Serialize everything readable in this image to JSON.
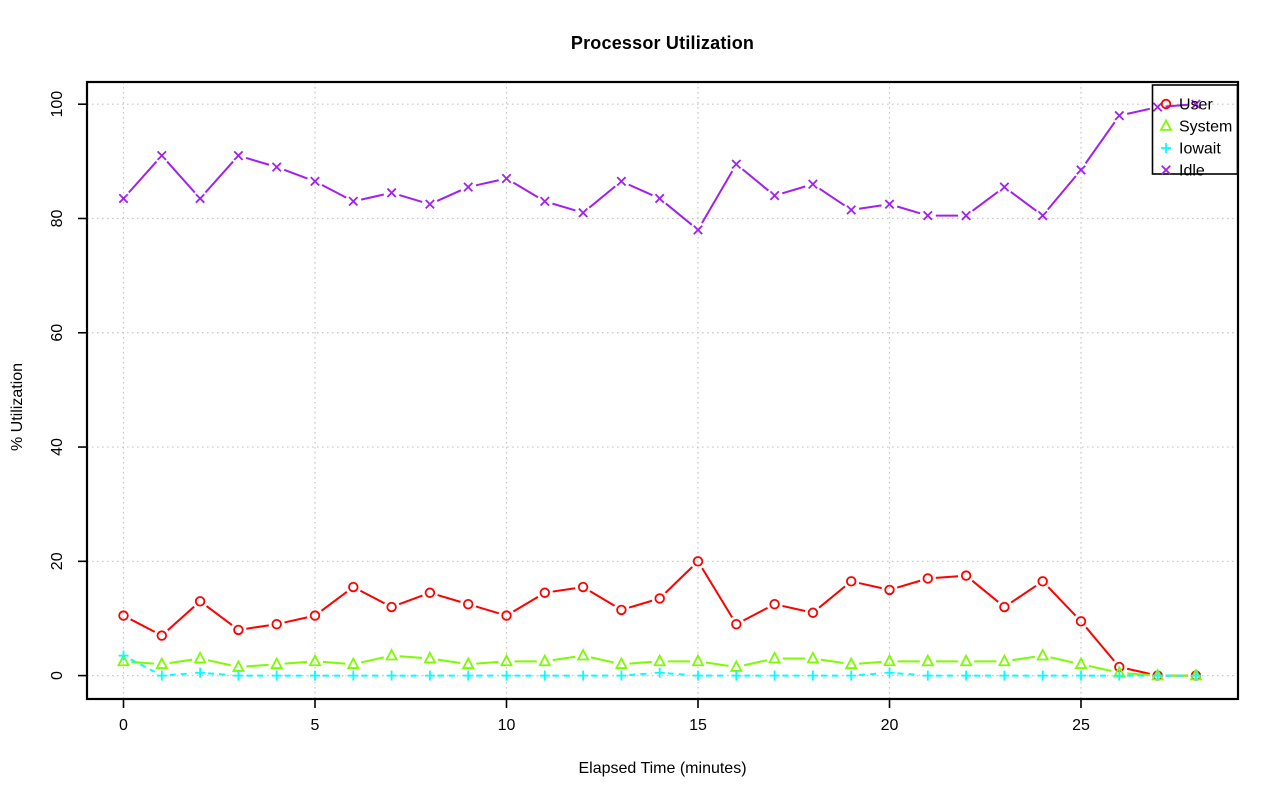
{
  "chart_data": {
    "type": "line",
    "title": "Processor Utilization",
    "xlabel": "Elapsed Time (minutes)",
    "ylabel": "% Utilization",
    "x": [
      0,
      1,
      2,
      3,
      4,
      5,
      6,
      7,
      8,
      9,
      10,
      11,
      12,
      13,
      14,
      15,
      16,
      17,
      18,
      19,
      20,
      21,
      22,
      23,
      24,
      25,
      26,
      27,
      28
    ],
    "x_ticks": [
      0,
      5,
      10,
      15,
      20,
      25
    ],
    "y_ticks": [
      0,
      20,
      40,
      60,
      80,
      100
    ],
    "xlim": [
      0,
      28
    ],
    "ylim": [
      0,
      100
    ],
    "grid": "dotted",
    "grid_color": "#c8c8c8",
    "legend_position": "topright",
    "series": [
      {
        "name": "User",
        "color": "#ff0000",
        "marker": "circle",
        "linestyle": "solid",
        "values": [
          10.5,
          7,
          13,
          8,
          9,
          10.5,
          15.5,
          12,
          14.5,
          12.5,
          10.5,
          14.5,
          15.5,
          11.5,
          13.5,
          20,
          9,
          12.5,
          11,
          16.5,
          15,
          17,
          17.5,
          12,
          16.5,
          9.5,
          1.5,
          0,
          0
        ]
      },
      {
        "name": "System",
        "color": "#7cfc00",
        "marker": "triangle",
        "linestyle": "solid",
        "values": [
          2.5,
          2,
          3,
          1.5,
          2,
          2.5,
          2,
          3.5,
          3,
          2,
          2.5,
          2.5,
          3.5,
          2,
          2.5,
          2.5,
          1.5,
          3,
          3,
          2,
          2.5,
          2.5,
          2.5,
          2.5,
          3.5,
          2,
          0.5,
          0,
          0
        ]
      },
      {
        "name": "Iowait",
        "color": "#00ffff",
        "marker": "plus",
        "linestyle": "dashed",
        "values": [
          3.5,
          0,
          0.5,
          0,
          0,
          0,
          0,
          0,
          0,
          0,
          0,
          0,
          0,
          0,
          0.5,
          0,
          0,
          0,
          0,
          0,
          0.5,
          0,
          0,
          0,
          0,
          0,
          0,
          0,
          0
        ]
      },
      {
        "name": "Idle",
        "color": "#a020f0",
        "marker": "x",
        "linestyle": "solid",
        "values": [
          83.5,
          91,
          83.5,
          91,
          89,
          86.5,
          83,
          84.5,
          82.5,
          85.5,
          87,
          83,
          81,
          86.5,
          83.5,
          78,
          89.5,
          84,
          86,
          81.5,
          82.5,
          80.5,
          80.5,
          85.5,
          80.5,
          88.5,
          98,
          99.5,
          100
        ]
      }
    ]
  }
}
